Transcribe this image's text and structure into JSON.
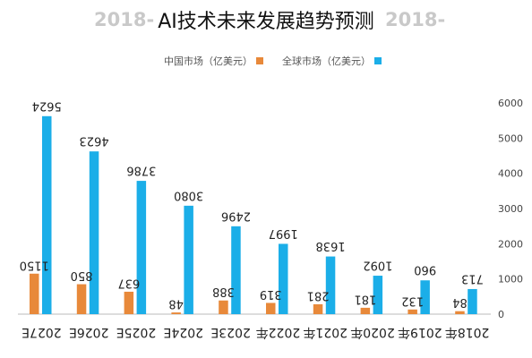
{
  "title": "AI技术未来发展趋势预测",
  "background_title": {
    "left": "2018-",
    "right": "2018-"
  },
  "colors": {
    "china": "#E8893A",
    "global": "#1BAEE8",
    "axis": "#bbbbbb"
  },
  "chart_data": {
    "type": "bar",
    "categories": [
      "2027E",
      "2026E",
      "2025E",
      "2024E",
      "2023E",
      "2022年",
      "2021年",
      "2020年",
      "2019年",
      "2018年"
    ],
    "series": [
      {
        "name": "中国市场（亿美元）",
        "values": [
          1150,
          850,
          637,
          48,
          388,
          319,
          281,
          181,
          132,
          84
        ]
      },
      {
        "name": "全球市场（亿美元）",
        "values": [
          5624,
          4623,
          3786,
          3080,
          2496,
          1997,
          1638,
          1092,
          960,
          713
        ]
      }
    ],
    "data_labels": {
      "china": [
        "1150",
        "850",
        "637",
        "48",
        "388",
        "319",
        "281",
        "181",
        "132",
        "84"
      ],
      "global": [
        "5624",
        "4623",
        "3786",
        "3080",
        "2496",
        "1997",
        "1638",
        "1092",
        "960",
        "713"
      ]
    },
    "y_ticks": [
      0,
      1000,
      2000,
      3000,
      4000,
      5000,
      6000
    ],
    "ylim": [
      0,
      6000
    ],
    "y_axis_side": "right",
    "legend_position": "top-center",
    "grid": false
  }
}
